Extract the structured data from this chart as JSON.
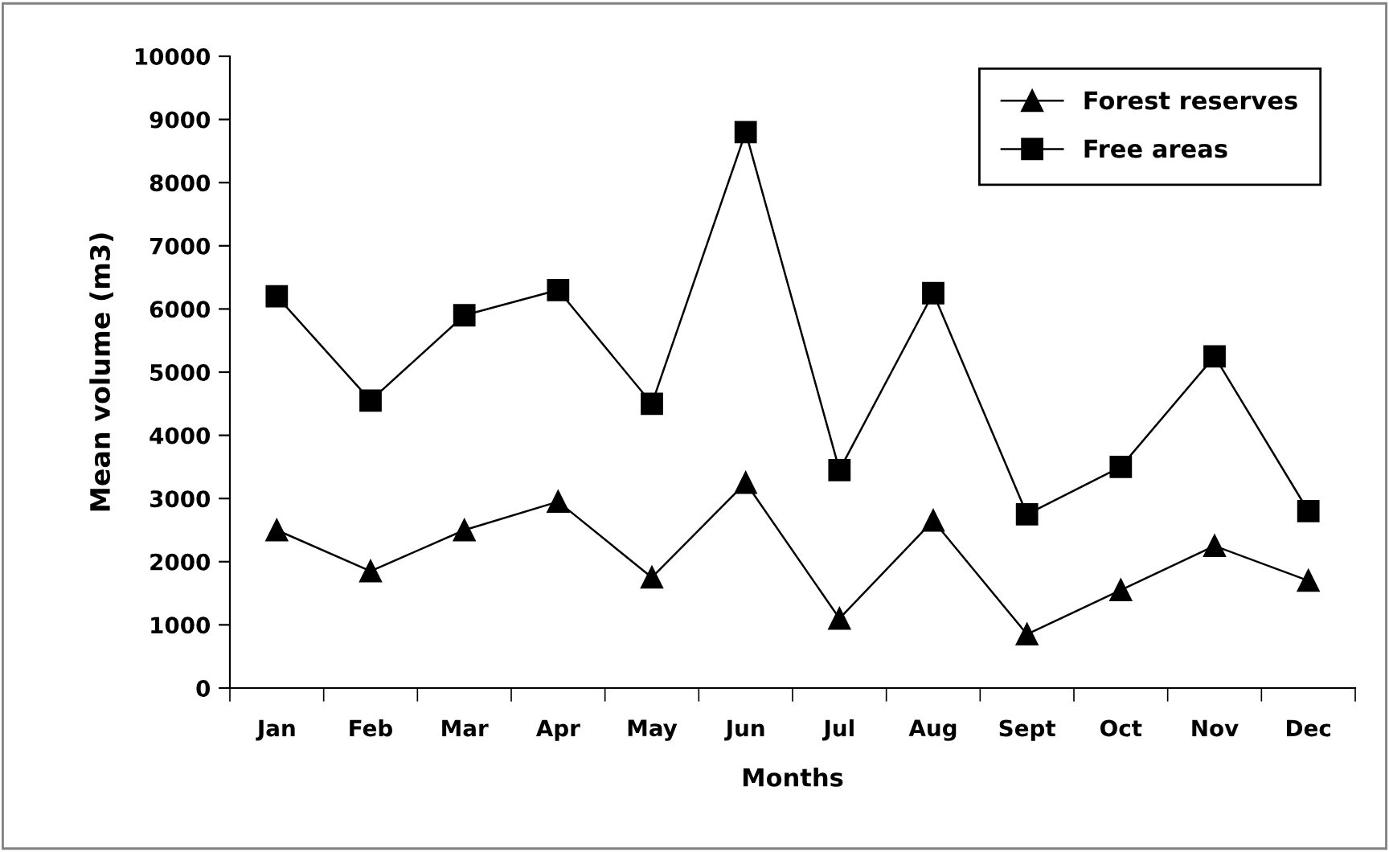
{
  "chart_data": {
    "type": "line",
    "xlabel": "Months",
    "ylabel": "Mean volume (m3)",
    "categories": [
      "Jan",
      "Feb",
      "Mar",
      "Apr",
      "May",
      "Jun",
      "Jul",
      "Aug",
      "Sept",
      "Oct",
      "Nov",
      "Dec"
    ],
    "series": [
      {
        "name": "Forest reserves",
        "color": "#000000",
        "marker": "triangle",
        "values": [
          2500,
          1850,
          2500,
          2950,
          1750,
          3250,
          1100,
          2650,
          850,
          1550,
          2250,
          1700
        ]
      },
      {
        "name": "Free areas",
        "color": "#000000",
        "marker": "square",
        "values": [
          6200,
          4550,
          5900,
          6300,
          4500,
          8800,
          3450,
          6250,
          2750,
          3500,
          5250,
          2800
        ]
      }
    ],
    "ylim": [
      0,
      10000
    ],
    "yticks": [
      0,
      1000,
      2000,
      3000,
      4000,
      5000,
      6000,
      7000,
      8000,
      9000,
      10000
    ],
    "grid": false,
    "legend": "top right",
    "line_style": "solid"
  }
}
